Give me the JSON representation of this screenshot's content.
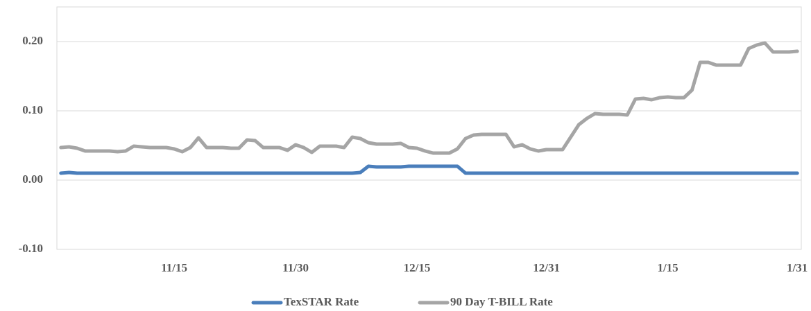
{
  "chart_data": {
    "type": "line",
    "categories": [
      null,
      null,
      null,
      null,
      null,
      null,
      null,
      null,
      null,
      null,
      null,
      null,
      null,
      null,
      "11/15",
      null,
      null,
      null,
      null,
      null,
      null,
      null,
      null,
      null,
      null,
      null,
      null,
      null,
      null,
      "11/30",
      null,
      null,
      null,
      null,
      null,
      null,
      null,
      null,
      null,
      null,
      null,
      null,
      null,
      null,
      "12/15",
      null,
      null,
      null,
      null,
      null,
      null,
      null,
      null,
      null,
      null,
      null,
      null,
      null,
      null,
      null,
      "12/31",
      null,
      null,
      null,
      null,
      null,
      null,
      null,
      null,
      null,
      null,
      null,
      null,
      null,
      null,
      "1/15",
      null,
      null,
      null,
      null,
      null,
      null,
      null,
      null,
      null,
      null,
      null,
      null,
      null,
      null,
      null,
      "1/31"
    ],
    "series": [
      {
        "name": "TexSTAR Rate",
        "color": "#4a7ebb",
        "values": [
          0.01,
          0.011,
          0.01,
          0.01,
          0.01,
          0.01,
          0.01,
          0.01,
          0.01,
          0.01,
          0.01,
          0.01,
          0.01,
          0.01,
          0.01,
          0.01,
          0.01,
          0.01,
          0.01,
          0.01,
          0.01,
          0.01,
          0.01,
          0.01,
          0.01,
          0.01,
          0.01,
          0.01,
          0.01,
          0.01,
          0.01,
          0.01,
          0.01,
          0.01,
          0.01,
          0.01,
          0.01,
          0.011,
          0.02,
          0.019,
          0.019,
          0.019,
          0.019,
          0.02,
          0.02,
          0.02,
          0.02,
          0.02,
          0.02,
          0.02,
          0.01,
          0.01,
          0.01,
          0.01,
          0.01,
          0.01,
          0.01,
          0.01,
          0.01,
          0.01,
          0.01,
          0.01,
          0.01,
          0.01,
          0.01,
          0.01,
          0.01,
          0.01,
          0.01,
          0.01,
          0.01,
          0.01,
          0.01,
          0.01,
          0.01,
          0.01,
          0.01,
          0.01,
          0.01,
          0.01,
          0.01,
          0.01,
          0.01,
          0.01,
          0.01,
          0.01,
          0.01,
          0.01,
          0.01,
          0.01,
          0.01,
          0.01
        ]
      },
      {
        "name": "90 Day T-BILL Rate",
        "color": "#a5a5a5",
        "values": [
          0.047,
          0.048,
          0.046,
          0.042,
          0.042,
          0.042,
          0.042,
          0.041,
          0.042,
          0.049,
          0.048,
          0.047,
          0.047,
          0.047,
          0.045,
          0.041,
          0.047,
          0.061,
          0.047,
          0.047,
          0.047,
          0.046,
          0.046,
          0.058,
          0.057,
          0.047,
          0.047,
          0.047,
          0.043,
          0.051,
          0.047,
          0.04,
          0.049,
          0.049,
          0.049,
          0.047,
          0.062,
          0.06,
          0.054,
          0.052,
          0.052,
          0.052,
          0.053,
          0.047,
          0.046,
          0.042,
          0.039,
          0.039,
          0.039,
          0.045,
          0.06,
          0.065,
          0.066,
          0.066,
          0.066,
          0.066,
          0.048,
          0.051,
          0.045,
          0.042,
          0.044,
          0.044,
          0.044,
          0.062,
          0.08,
          0.089,
          0.096,
          0.095,
          0.095,
          0.095,
          0.094,
          0.117,
          0.118,
          0.116,
          0.119,
          0.12,
          0.119,
          0.119,
          0.13,
          0.17,
          0.17,
          0.166,
          0.166,
          0.166,
          0.166,
          0.19,
          0.195,
          0.198,
          0.185,
          0.185,
          0.185,
          0.186
        ]
      }
    ],
    "ylim": [
      -0.1,
      0.25
    ],
    "yticks": [
      {
        "value": -0.1,
        "label": "-0.10"
      },
      {
        "value": 0,
        "label": "0.00"
      },
      {
        "value": 0.1,
        "label": "0.10"
      },
      {
        "value": 0.2,
        "label": "0.20"
      }
    ],
    "grid": true,
    "legend": "bottom"
  }
}
